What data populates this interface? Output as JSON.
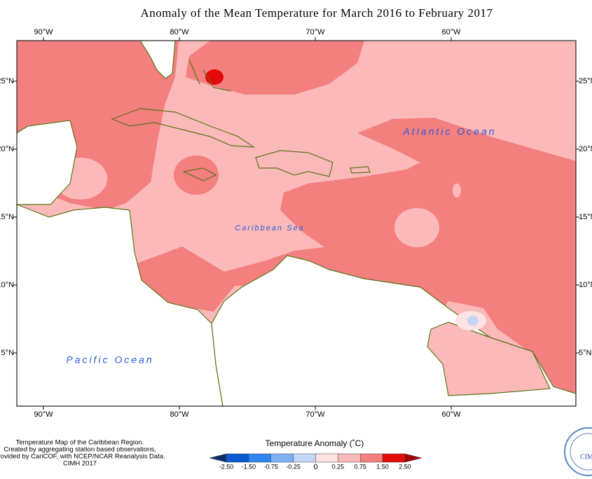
{
  "title": "Anomaly of the Mean Temperature for March 2016 to February 2017",
  "lon_labels": [
    "90°W",
    "80°W",
    "70°W",
    "60°W"
  ],
  "lat_labels": [
    "25°N",
    "20°N",
    "15°N",
    "10°N",
    "5°N"
  ],
  "ocean_labels": {
    "atlantic": "Atlantic Ocean",
    "caribbean": "Caribbean Sea",
    "pacific": "Pacific Ocean"
  },
  "credits": [
    "Temperature Map of the Caribbean Region.",
    "Created by aggregating station based observations,",
    "provided by CariCOF, with NCEP/NCAR Reanalysis Data.",
    "CIMH 2017"
  ],
  "legend": {
    "title": "Temperature Anomaly (˚C)",
    "labels": [
      "-2.50",
      "-1.50",
      "-0.75",
      "-0.25",
      "0",
      "0.25",
      "0.75",
      "1.50",
      "2.50"
    ],
    "colors": [
      "#08306b",
      "#0a5ad6",
      "#2f86f0",
      "#7fb0f2",
      "#c4d6f7",
      "#fde3e3",
      "#fbb9b9",
      "#f47f7f",
      "#e20a0a",
      "#a00000"
    ]
  },
  "logo": "CIMH"
}
